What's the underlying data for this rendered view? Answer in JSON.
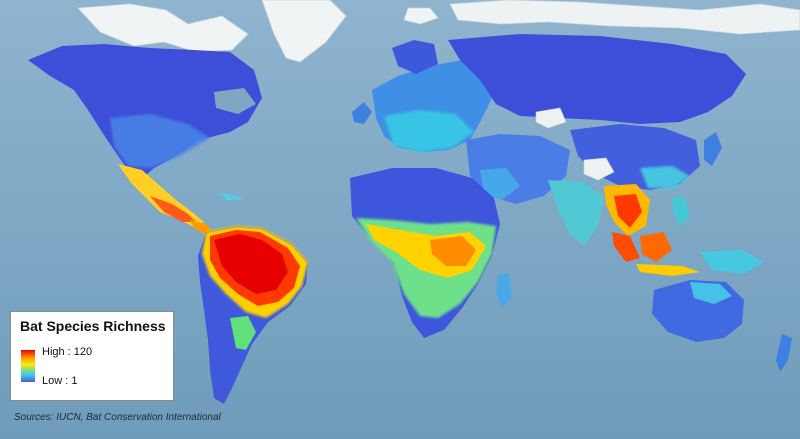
{
  "map": {
    "subject": "global bat species richness",
    "colors": {
      "ocean": "#7ea7c4",
      "ice": "#eef2f3",
      "low": "#4a5de0",
      "mid": "#3fc8e8",
      "medium": "#7fe07a",
      "high_mid": "#ffee00",
      "high": "#ff8c00",
      "max": "#e60000"
    }
  },
  "legend": {
    "title": "Bat Species Richness",
    "high_label": "High : 120",
    "low_label": "Low : 1"
  },
  "sources": "Sources: IUCN, Bat Conservation International"
}
